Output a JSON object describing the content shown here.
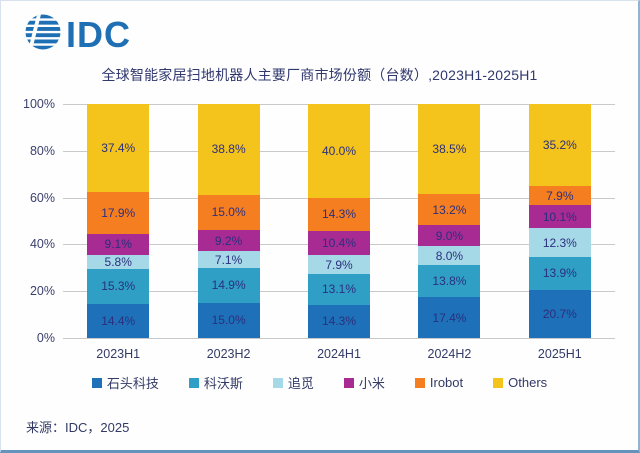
{
  "logo": {
    "text": "IDC",
    "color": "#1F6FB4",
    "icon": "globe-stripes-icon"
  },
  "title": "全球智能家居扫地机器人主要厂商市场份额（台数）,2023H1-2025H1",
  "source": "来源：IDC，2025",
  "chart_data": {
    "type": "bar",
    "stacked": true,
    "orientation": "vertical",
    "title": "全球智能家居扫地机器人主要厂商市场份额（台数）,2023H1-2025H1",
    "categories": [
      "2023H1",
      "2023H2",
      "2024H1",
      "2024H2",
      "2025H1"
    ],
    "series": [
      {
        "name": "石头科技",
        "color": "#1E70B8",
        "values": [
          14.4,
          15.0,
          14.3,
          17.4,
          20.7
        ]
      },
      {
        "name": "科沃斯",
        "color": "#2F9FC6",
        "values": [
          15.3,
          14.9,
          13.1,
          13.8,
          13.9
        ]
      },
      {
        "name": "追觅",
        "color": "#A6D9E7",
        "values": [
          5.8,
          7.1,
          7.9,
          8.0,
          12.3
        ]
      },
      {
        "name": "小米",
        "color": "#A72B93",
        "values": [
          9.1,
          9.2,
          10.4,
          9.0,
          10.1
        ]
      },
      {
        "name": "Irobot",
        "color": "#F57E20",
        "values": [
          17.9,
          15.0,
          14.3,
          13.2,
          7.9
        ]
      },
      {
        "name": "Others",
        "color": "#F4C31C",
        "values": [
          37.4,
          38.8,
          40.0,
          38.5,
          35.2
        ]
      }
    ],
    "xlabel": "",
    "ylabel": "",
    "ylim": [
      0,
      100
    ],
    "yticks": [
      "0%",
      "20%",
      "40%",
      "60%",
      "80%",
      "100%"
    ],
    "grid": true,
    "legend_position": "bottom",
    "data_labels": true,
    "data_label_format": "{value}%",
    "data_label_color": "#2b2f7e"
  }
}
